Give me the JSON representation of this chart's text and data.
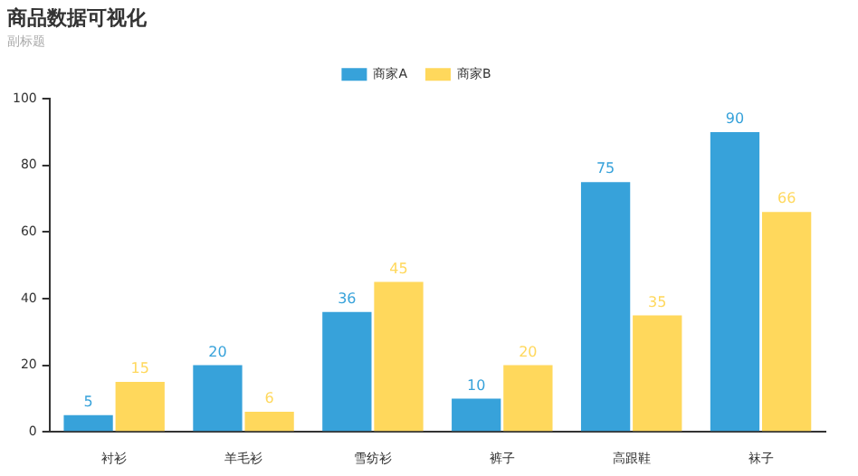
{
  "chart_data": {
    "type": "bar",
    "title": "商品数据可视化",
    "subtitle": "副标题",
    "categories": [
      "衬衫",
      "羊毛衫",
      "雪纺衫",
      "裤子",
      "高跟鞋",
      "袜子"
    ],
    "series": [
      {
        "name": "商家A",
        "color": "#37a2da",
        "values": [
          5,
          20,
          36,
          10,
          75,
          90
        ]
      },
      {
        "name": "商家B",
        "color": "#ffd85c",
        "values": [
          15,
          6,
          45,
          20,
          35,
          66
        ]
      }
    ],
    "ylim": [
      0,
      100
    ],
    "yticks": [
      0,
      20,
      40,
      60,
      80,
      100
    ],
    "grid": false,
    "legend": "top",
    "data_labels": true
  }
}
